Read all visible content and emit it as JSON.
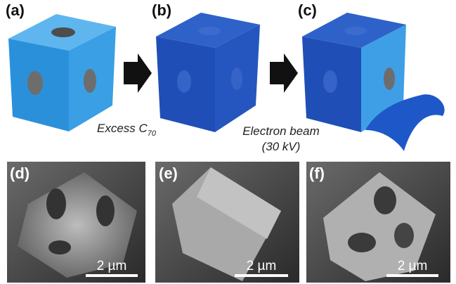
{
  "panels": [
    {
      "label": "(a)"
    },
    {
      "label": "(b)"
    },
    {
      "label": "(c)"
    },
    {
      "label": "(d)",
      "scale_bar": "2 µm"
    },
    {
      "label": "(e)",
      "scale_bar": "2 µm"
    },
    {
      "label": "(f)",
      "scale_bar": "2 µm"
    }
  ],
  "captions": [
    {
      "text": "Excess C",
      "subscript": "70"
    },
    {
      "lines": [
        "Electron beam",
        "(30 kV)"
      ]
    }
  ]
}
